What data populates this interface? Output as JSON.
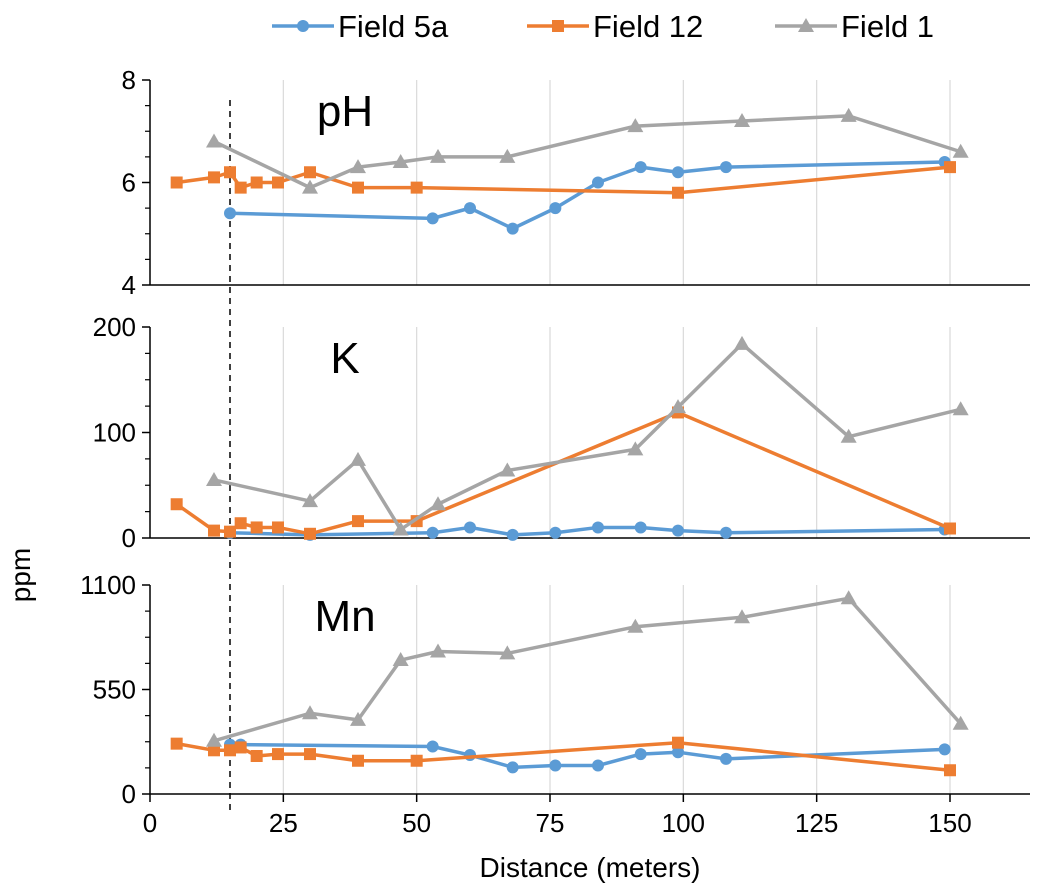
{
  "chart_data": {
    "type": "line",
    "xlabel": "Distance (meters)",
    "ylabel": "ppm",
    "xlim": [
      0,
      165
    ],
    "xticks": [
      0,
      25,
      50,
      75,
      100,
      125,
      150
    ],
    "grid": true,
    "legend_position": "top",
    "reference_line_x": 15,
    "series_styles": [
      {
        "name": "Field 5a",
        "color": "#5b9bd5",
        "marker": "circle"
      },
      {
        "name": "Field 12",
        "color": "#ed7d31",
        "marker": "square"
      },
      {
        "name": "Field 1",
        "color": "#a5a5a5",
        "marker": "triangle"
      }
    ],
    "panels": [
      {
        "label": "pH",
        "ylim": [
          4,
          8
        ],
        "yticks": [
          4,
          6,
          8
        ],
        "series": [
          {
            "name": "Field 5a",
            "x": [
              15,
              53,
              60,
              68,
              76,
              84,
              92,
              99,
              108,
              149
            ],
            "y": [
              5.4,
              5.3,
              5.5,
              5.1,
              5.5,
              6.0,
              6.3,
              6.2,
              6.3,
              6.4
            ]
          },
          {
            "name": "Field 12",
            "x": [
              5,
              12,
              15,
              17,
              20,
              24,
              30,
              39,
              50,
              99,
              150
            ],
            "y": [
              6.0,
              6.1,
              6.2,
              5.9,
              6.0,
              6.0,
              6.2,
              5.9,
              5.9,
              5.8,
              6.3
            ]
          },
          {
            "name": "Field 1",
            "x": [
              12,
              30,
              39,
              47,
              54,
              67,
              91,
              111,
              131,
              152
            ],
            "y": [
              6.8,
              5.9,
              6.3,
              6.4,
              6.5,
              6.5,
              7.1,
              7.2,
              7.3,
              6.6
            ]
          }
        ]
      },
      {
        "label": "K",
        "ylim": [
          0,
          200
        ],
        "yticks": [
          0,
          100,
          200
        ],
        "series": [
          {
            "name": "Field 5a",
            "x": [
              15,
              30,
              53,
              60,
              68,
              76,
              84,
              92,
              99,
              108,
              149
            ],
            "y": [
              5,
              3,
              5,
              10,
              3,
              5,
              10,
              10,
              7,
              5,
              8
            ]
          },
          {
            "name": "Field 12",
            "x": [
              5,
              12,
              15,
              17,
              20,
              24,
              30,
              39,
              50,
              99,
              150
            ],
            "y": [
              32,
              7,
              6,
              14,
              10,
              10,
              4,
              16,
              16,
              119,
              9
            ]
          },
          {
            "name": "Field 1",
            "x": [
              12,
              30,
              39,
              47,
              54,
              67,
              91,
              99,
              111,
              131,
              152
            ],
            "y": [
              55,
              35,
              74,
              8,
              32,
              64,
              84,
              124,
              184,
              96,
              122
            ]
          }
        ]
      },
      {
        "label": "Mn",
        "ylim": [
          0,
          1100
        ],
        "yticks": [
          0,
          550,
          1100
        ],
        "series": [
          {
            "name": "Field 5a",
            "x": [
              15,
              17,
              53,
              60,
              68,
              76,
              84,
              92,
              99,
              108,
              149
            ],
            "y": [
              260,
              260,
              250,
              205,
              140,
              150,
              150,
              210,
              220,
              185,
              235
            ]
          },
          {
            "name": "Field 12",
            "x": [
              5,
              12,
              15,
              17,
              20,
              24,
              30,
              39,
              50,
              99,
              150
            ],
            "y": [
              265,
              230,
              230,
              245,
              200,
              210,
              210,
              175,
              175,
              270,
              125
            ]
          },
          {
            "name": "Field 1",
            "x": [
              12,
              30,
              39,
              47,
              54,
              67,
              91,
              111,
              131,
              152
            ],
            "y": [
              280,
              425,
              390,
              705,
              750,
              740,
              880,
              930,
              1030,
              370
            ]
          }
        ]
      }
    ]
  }
}
